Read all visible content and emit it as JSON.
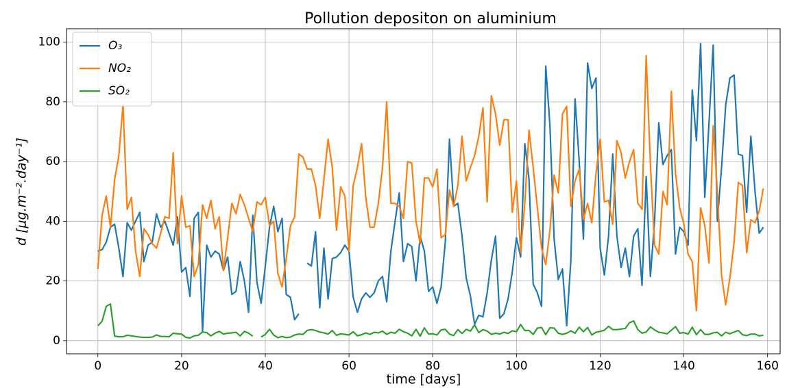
{
  "chart_data": {
    "type": "line",
    "title": "Pollution depositon on aluminium",
    "x_label": "time [days]",
    "y_label": "d [μg.m⁻².day⁻¹]",
    "x": [
      0,
      1,
      2,
      3,
      4,
      5,
      6,
      7,
      8,
      9,
      10,
      11,
      12,
      13,
      14,
      15,
      16,
      17,
      18,
      19,
      20,
      21,
      22,
      23,
      24,
      25,
      26,
      27,
      28,
      29,
      30,
      31,
      32,
      33,
      34,
      35,
      36,
      37,
      38,
      39,
      40,
      41,
      42,
      43,
      44,
      45,
      46,
      47,
      48,
      49,
      50,
      51,
      52,
      53,
      54,
      55,
      56,
      57,
      58,
      59,
      60,
      61,
      62,
      63,
      64,
      65,
      66,
      67,
      68,
      69,
      70,
      71,
      72,
      73,
      74,
      75,
      76,
      77,
      78,
      79,
      80,
      81,
      82,
      83,
      84,
      85,
      86,
      87,
      88,
      89,
      90,
      91,
      92,
      93,
      94,
      95,
      96,
      97,
      98,
      99,
      100,
      101,
      102,
      103,
      104,
      105,
      106,
      107,
      108,
      109,
      110,
      111,
      112,
      113,
      114,
      115,
      116,
      117,
      118,
      119,
      120,
      121,
      122,
      123,
      124,
      125,
      126,
      127,
      128,
      129,
      130,
      131,
      132,
      133,
      134,
      135,
      136,
      137,
      138,
      139,
      140,
      141,
      142,
      143,
      144,
      145,
      146,
      147,
      148,
      149,
      150,
      151,
      152,
      153,
      154,
      155,
      156,
      157,
      158,
      159
    ],
    "series": [
      {
        "name": "O₃",
        "color": "#1f77b4",
        "values": [
          30,
          30.5,
          33,
          38,
          39,
          31,
          21.5,
          39.5,
          37,
          40,
          43,
          26.5,
          32,
          33,
          42.5,
          38,
          40,
          36,
          32,
          41.5,
          23,
          24.5,
          14.8,
          41,
          43,
          3,
          32,
          28,
          30,
          29,
          23.5,
          28,
          15.5,
          16.5,
          26.5,
          20,
          9.5,
          42,
          19.5,
          12.5,
          25,
          38,
          45,
          36.5,
          41,
          15.5,
          14.5,
          7,
          9,
          null,
          26,
          25,
          36.5,
          11,
          31,
          14,
          27.5,
          28,
          29.5,
          32,
          30,
          14.5,
          9.5,
          14,
          16,
          14.5,
          16,
          20,
          21.5,
          13,
          30,
          40,
          49.5,
          26.5,
          32.5,
          31.5,
          20,
          35,
          30,
          16.5,
          18,
          12.5,
          18,
          33,
          67.5,
          45,
          46,
          35,
          21,
          15,
          5.5,
          8.5,
          8,
          16,
          27,
          35,
          7.5,
          9,
          14,
          23,
          34.5,
          28,
          66,
          54,
          19,
          16,
          11.5,
          92,
          72,
          34,
          20.5,
          24,
          5,
          27,
          81,
          60,
          34,
          93,
          84.5,
          88,
          31,
          22,
          35,
          62.5,
          35,
          24.5,
          31,
          21.5,
          35,
          37.5,
          18.5,
          55,
          21.5,
          40,
          73,
          59,
          62,
          64,
          29,
          38,
          36.5,
          32,
          84,
          67,
          99.5,
          48,
          73,
          99,
          40,
          58,
          79,
          88,
          89,
          62.5,
          62,
          43,
          68.5,
          50,
          36,
          38
        ]
      },
      {
        "name": "NO₂",
        "color": "#ff7f0e",
        "values": [
          24,
          42,
          48.5,
          38,
          54,
          62,
          79,
          44,
          48,
          30,
          21.5,
          37.5,
          35.5,
          32.5,
          31,
          36,
          41.5,
          41,
          63,
          32.5,
          48.5,
          38,
          38.5,
          21.5,
          25.5,
          45.5,
          41,
          47,
          37.5,
          41.5,
          23.5,
          34.5,
          46,
          42.5,
          49,
          45.5,
          41,
          36.5,
          46.5,
          45.5,
          48,
          38.5,
          40,
          22.5,
          18,
          27.5,
          38.5,
          41.5,
          62.5,
          61.5,
          57.5,
          57.5,
          52,
          41,
          54,
          67.5,
          58,
          37,
          51.5,
          48.5,
          30,
          52,
          58,
          66,
          48,
          38,
          38,
          46,
          58,
          80,
          46,
          46,
          45,
          41,
          60,
          59.5,
          40,
          32.5,
          54.5,
          54.5,
          51.5,
          57.5,
          34.5,
          35.5,
          50.5,
          45,
          52,
          68.5,
          53.5,
          58,
          62,
          68.5,
          78,
          46.5,
          82,
          76,
          65.5,
          74,
          74,
          43,
          53.5,
          29.5,
          46,
          70.5,
          58,
          44.5,
          31,
          25.5,
          37,
          55.5,
          49.5,
          76,
          78.5,
          45,
          53.5,
          57.5,
          40.5,
          46,
          39.5,
          56,
          67.5,
          46.5,
          47,
          39,
          67,
          63,
          54.5,
          60,
          64,
          46,
          44,
          95.5,
          59,
          32,
          29,
          50,
          45.5,
          83.5,
          56,
          44.5,
          39,
          29,
          26.5,
          10,
          44.5,
          38.5,
          26,
          72,
          50,
          22,
          12,
          21,
          33,
          53,
          52,
          29.5,
          40.5,
          39.5,
          43.5,
          51
        ]
      },
      {
        "name": "SO₂",
        "color": "#2ca02c",
        "values": [
          5,
          6.5,
          11.5,
          12.3,
          1.5,
          1.3,
          1.3,
          1.8,
          1.6,
          1.4,
          1.2,
          1.1,
          1.1,
          1.2,
          1.9,
          1.4,
          1.4,
          1.3,
          2.5,
          2.3,
          2.2,
          1.1,
          0.9,
          1.6,
          1.8,
          2.9,
          2.7,
          1.6,
          2.5,
          3.1,
          2.2,
          2.5,
          2.6,
          2.8,
          1.6,
          3.1,
          2.5,
          1.5,
          null,
          1.2,
          2.1,
          3.8,
          1.9,
          1,
          1.4,
          1,
          1.2,
          1.9,
          2.2,
          2.1,
          3.4,
          3.7,
          3.4,
          2.9,
          2.6,
          2.2,
          3.4,
          1.8,
          2.3,
          2.1,
          1.9,
          3,
          1.6,
          2,
          2.6,
          2.1,
          2.8,
          2.6,
          3.2,
          2.1,
          2.8,
          2.5,
          3.8,
          3,
          2.5,
          1.6,
          3.8,
          1.5,
          4.3,
          2.2,
          2.3,
          1.9,
          3.6,
          3.8,
          2.2,
          1.7,
          3.7,
          2.4,
          3.8,
          3.2,
          5.3,
          2.7,
          3.7,
          3.2,
          2.1,
          2.5,
          2.2,
          2.8,
          2.4,
          3.3,
          3,
          5.4,
          3.4,
          3.4,
          2.1,
          4.2,
          4.4,
          2,
          4.3,
          4.2,
          2.5,
          2.1,
          2.5,
          3.3,
          2.5,
          4.5,
          3,
          4.4,
          1.9,
          2.8,
          3.1,
          3.5,
          4.8,
          3.7,
          3.7,
          3.9,
          4.1,
          6,
          6.6,
          3.7,
          2.5,
          2.9,
          4.6,
          3.6,
          2.8,
          2.6,
          2.3,
          3.5,
          4.7,
          2.5,
          2.7,
          2.2,
          4.5,
          2,
          3.7,
          2.1,
          2.1,
          2.6,
          2.8,
          1.6,
          2.8,
          2.3,
          2.9,
          3.4,
          2,
          1.7,
          2.2,
          2.2,
          1.6,
          1.8
        ]
      }
    ],
    "xlim": [
      -7.5,
      163
    ],
    "ylim": [
      -4.4,
      104.5
    ],
    "xticks": [
      0,
      20,
      40,
      60,
      80,
      100,
      120,
      140,
      160
    ],
    "yticks": [
      0,
      20,
      40,
      60,
      80,
      100
    ],
    "grid": true,
    "legend": "upper left"
  }
}
